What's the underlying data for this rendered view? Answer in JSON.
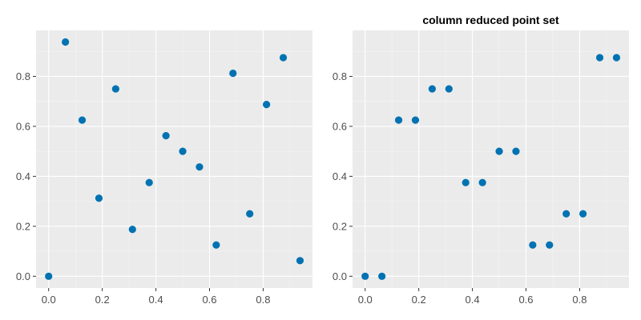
{
  "chart_data": [
    {
      "type": "scatter",
      "title": "",
      "xlabel": "",
      "ylabel": "",
      "xlim": [
        -0.047,
        0.984
      ],
      "ylim": [
        -0.047,
        0.984
      ],
      "x_ticks": [
        0.0,
        0.2,
        0.4,
        0.6,
        0.8
      ],
      "x_tick_labels": [
        "0.0",
        "0.2",
        "0.4",
        "0.6",
        "0.8"
      ],
      "y_ticks": [
        0.0,
        0.2,
        0.4,
        0.6,
        0.8
      ],
      "y_tick_labels": [
        "0.0",
        "0.2",
        "0.4",
        "0.6",
        "0.8"
      ],
      "grid": true,
      "point_color": "#0072b2",
      "points": [
        {
          "x": 0.0,
          "y": 0.0
        },
        {
          "x": 0.0625,
          "y": 0.9375
        },
        {
          "x": 0.125,
          "y": 0.625
        },
        {
          "x": 0.1875,
          "y": 0.3125
        },
        {
          "x": 0.25,
          "y": 0.75
        },
        {
          "x": 0.3125,
          "y": 0.1875
        },
        {
          "x": 0.375,
          "y": 0.375
        },
        {
          "x": 0.4375,
          "y": 0.5625
        },
        {
          "x": 0.5,
          "y": 0.5
        },
        {
          "x": 0.5625,
          "y": 0.4375
        },
        {
          "x": 0.625,
          "y": 0.125
        },
        {
          "x": 0.6875,
          "y": 0.8125
        },
        {
          "x": 0.75,
          "y": 0.25
        },
        {
          "x": 0.8125,
          "y": 0.6875
        },
        {
          "x": 0.875,
          "y": 0.875
        },
        {
          "x": 0.9375,
          "y": 0.0625
        }
      ]
    },
    {
      "type": "scatter",
      "title": "column reduced point set",
      "xlabel": "",
      "ylabel": "",
      "xlim": [
        -0.047,
        0.984
      ],
      "ylim": [
        -0.047,
        0.984
      ],
      "x_ticks": [
        0.0,
        0.2,
        0.4,
        0.6,
        0.8
      ],
      "x_tick_labels": [
        "0.0",
        "0.2",
        "0.4",
        "0.6",
        "0.8"
      ],
      "y_ticks": [
        0.0,
        0.2,
        0.4,
        0.6,
        0.8
      ],
      "y_tick_labels": [
        "0.0",
        "0.2",
        "0.4",
        "0.6",
        "0.8"
      ],
      "grid": true,
      "point_color": "#0072b2",
      "points": [
        {
          "x": 0.0,
          "y": 0.0
        },
        {
          "x": 0.0625,
          "y": 0.0
        },
        {
          "x": 0.125,
          "y": 0.625
        },
        {
          "x": 0.1875,
          "y": 0.625
        },
        {
          "x": 0.25,
          "y": 0.75
        },
        {
          "x": 0.3125,
          "y": 0.75
        },
        {
          "x": 0.375,
          "y": 0.375
        },
        {
          "x": 0.4375,
          "y": 0.375
        },
        {
          "x": 0.5,
          "y": 0.5
        },
        {
          "x": 0.5625,
          "y": 0.5
        },
        {
          "x": 0.625,
          "y": 0.125
        },
        {
          "x": 0.6875,
          "y": 0.125
        },
        {
          "x": 0.75,
          "y": 0.25
        },
        {
          "x": 0.8125,
          "y": 0.25
        },
        {
          "x": 0.875,
          "y": 0.875
        },
        {
          "x": 0.9375,
          "y": 0.875
        }
      ]
    }
  ]
}
